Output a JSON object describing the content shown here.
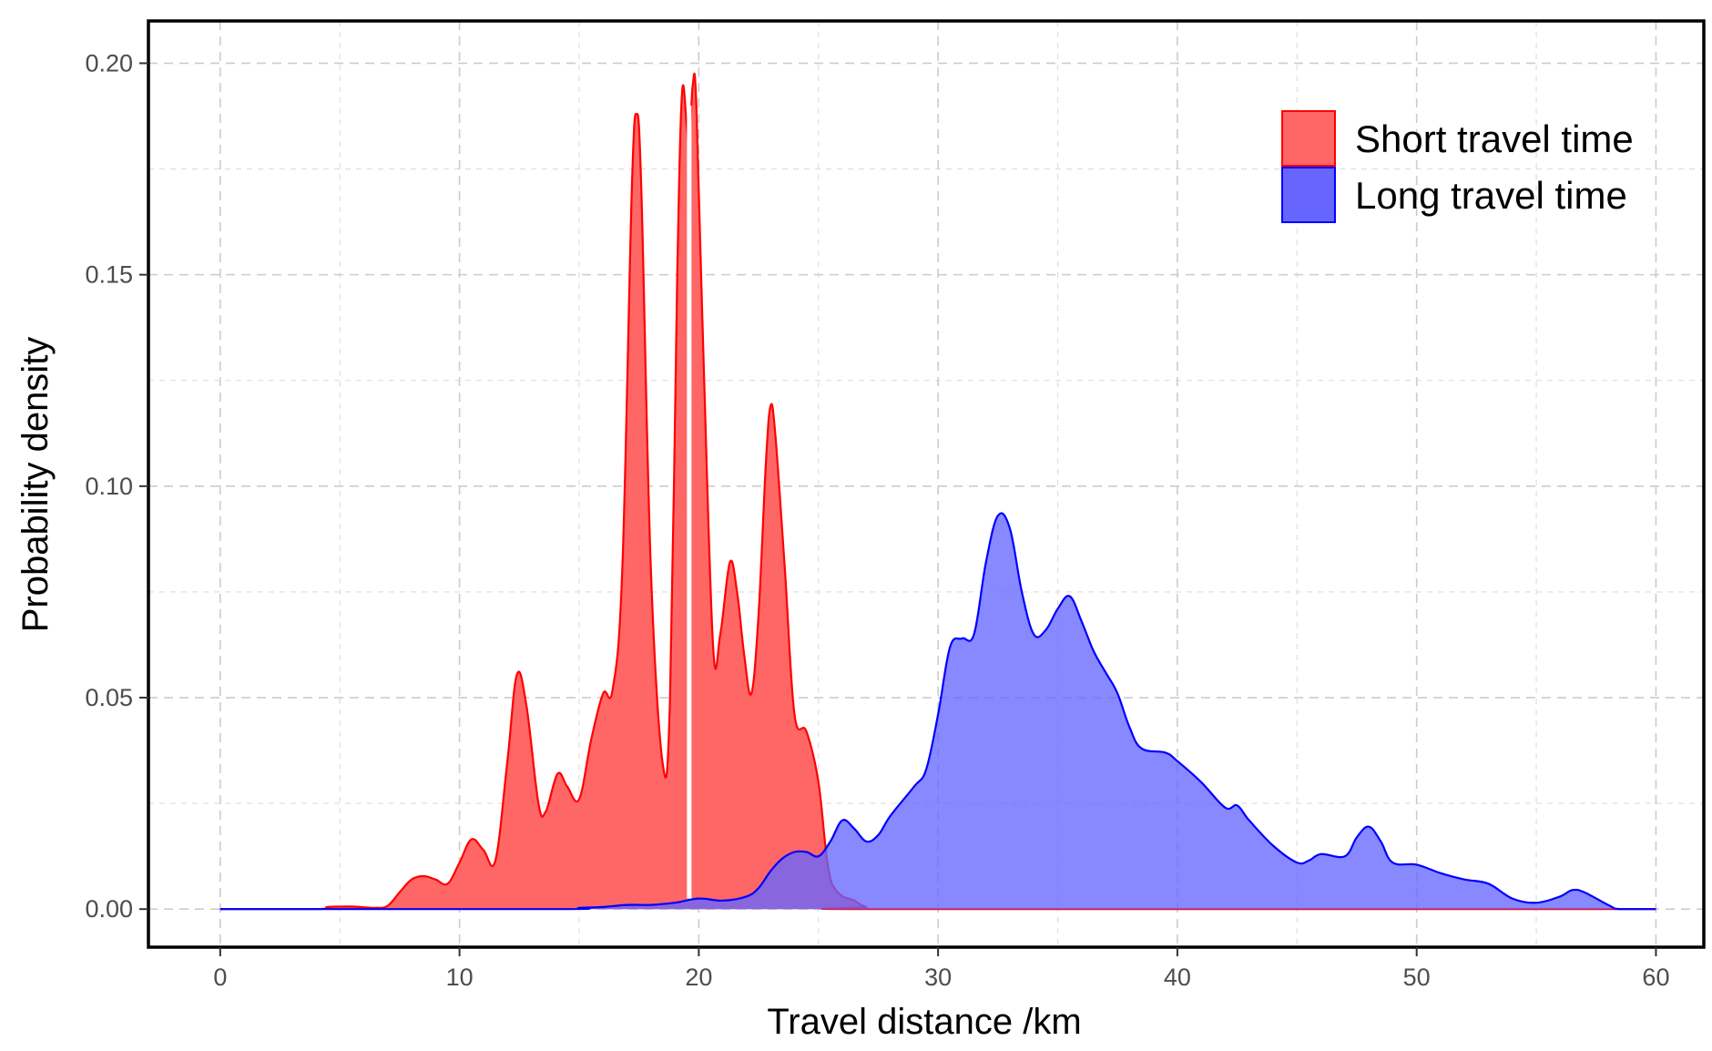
{
  "chart_data": {
    "type": "area",
    "title": "",
    "xlabel": "Travel distance /km",
    "ylabel": "Probability density",
    "xlim": [
      -3,
      62
    ],
    "ylim": [
      -0.009,
      0.21
    ],
    "x_ticks": [
      0,
      10,
      20,
      30,
      40,
      50,
      60
    ],
    "x_tick_labels": [
      "0",
      "10",
      "20",
      "30",
      "40",
      "50",
      "60"
    ],
    "y_ticks": [
      0.0,
      0.05,
      0.1,
      0.15,
      0.2
    ],
    "y_tick_labels": [
      "0.00",
      "0.05",
      "0.10",
      "0.15",
      "0.20"
    ],
    "grid": true,
    "legend_position": "top-right",
    "series": [
      {
        "name": "Short travel time",
        "fill": "#ff6666",
        "stroke": "#ff0000",
        "points": [
          [
            0,
            0
          ],
          [
            4,
            0
          ],
          [
            4.5,
            0.0005
          ],
          [
            5.5,
            0.0006
          ],
          [
            6.5,
            0.0003
          ],
          [
            7,
            0.0008
          ],
          [
            7.5,
            0.004
          ],
          [
            8,
            0.007
          ],
          [
            8.5,
            0.0078
          ],
          [
            9,
            0.007
          ],
          [
            9.5,
            0.006
          ],
          [
            10,
            0.011
          ],
          [
            10.5,
            0.0165
          ],
          [
            11,
            0.014
          ],
          [
            11.5,
            0.0115
          ],
          [
            12,
            0.035
          ],
          [
            12.4,
            0.0555
          ],
          [
            12.8,
            0.048
          ],
          [
            13.3,
            0.025
          ],
          [
            13.6,
            0.023
          ],
          [
            14.1,
            0.032
          ],
          [
            14.5,
            0.029
          ],
          [
            15,
            0.026
          ],
          [
            15.5,
            0.04
          ],
          [
            16,
            0.051
          ],
          [
            16.4,
            0.052
          ],
          [
            16.8,
            0.08
          ],
          [
            17.2,
            0.17
          ],
          [
            17.4,
            0.188
          ],
          [
            17.6,
            0.17
          ],
          [
            18,
            0.08
          ],
          [
            18.5,
            0.034
          ],
          [
            18.8,
            0.05
          ],
          [
            19.1,
            0.15
          ],
          [
            19.3,
            0.193
          ],
          [
            19.5,
            0.185
          ],
          [
            19.6,
            0.18
          ],
          [
            19.75,
            0.195
          ],
          [
            19.9,
            0.19
          ],
          [
            20.2,
            0.13
          ],
          [
            20.6,
            0.062
          ],
          [
            20.9,
            0.065
          ],
          [
            21.3,
            0.082
          ],
          [
            21.6,
            0.075
          ],
          [
            21.9,
            0.06
          ],
          [
            22.2,
            0.051
          ],
          [
            22.5,
            0.07
          ],
          [
            22.8,
            0.105
          ],
          [
            23,
            0.119
          ],
          [
            23.2,
            0.112
          ],
          [
            23.6,
            0.08
          ],
          [
            24,
            0.046
          ],
          [
            24.5,
            0.042
          ],
          [
            25,
            0.03
          ],
          [
            25.4,
            0.01
          ],
          [
            25.8,
            0.004
          ],
          [
            26.5,
            0.002
          ],
          [
            27,
            0.0005
          ],
          [
            28,
            0
          ],
          [
            60,
            0
          ]
        ]
      },
      {
        "name": "Long travel time",
        "fill": "#6666ff",
        "stroke": "#0000ff",
        "points": [
          [
            0,
            0
          ],
          [
            14,
            0
          ],
          [
            15,
            0.0003
          ],
          [
            16,
            0.0005
          ],
          [
            17,
            0.001
          ],
          [
            18,
            0.001
          ],
          [
            19,
            0.0015
          ],
          [
            20,
            0.0025
          ],
          [
            21,
            0.002
          ],
          [
            22,
            0.003
          ],
          [
            22.5,
            0.005
          ],
          [
            23,
            0.009
          ],
          [
            23.5,
            0.012
          ],
          [
            24,
            0.0135
          ],
          [
            24.5,
            0.0135
          ],
          [
            25,
            0.0125
          ],
          [
            25.5,
            0.016
          ],
          [
            26,
            0.021
          ],
          [
            26.5,
            0.019
          ],
          [
            27,
            0.016
          ],
          [
            27.5,
            0.0175
          ],
          [
            28,
            0.022
          ],
          [
            29,
            0.029
          ],
          [
            29.5,
            0.033
          ],
          [
            30,
            0.046
          ],
          [
            30.5,
            0.062
          ],
          [
            31,
            0.064
          ],
          [
            31.5,
            0.065
          ],
          [
            32,
            0.082
          ],
          [
            32.5,
            0.093
          ],
          [
            33,
            0.09
          ],
          [
            33.5,
            0.075
          ],
          [
            34,
            0.065
          ],
          [
            34.5,
            0.066
          ],
          [
            35,
            0.071
          ],
          [
            35.5,
            0.074
          ],
          [
            36,
            0.068
          ],
          [
            36.5,
            0.061
          ],
          [
            37,
            0.056
          ],
          [
            37.5,
            0.051
          ],
          [
            38,
            0.043
          ],
          [
            38.5,
            0.038
          ],
          [
            39.5,
            0.037
          ],
          [
            40,
            0.035
          ],
          [
            41,
            0.03
          ],
          [
            42,
            0.024
          ],
          [
            42.5,
            0.0245
          ],
          [
            43,
            0.021
          ],
          [
            44,
            0.015
          ],
          [
            45,
            0.011
          ],
          [
            45.5,
            0.0115
          ],
          [
            46,
            0.013
          ],
          [
            47,
            0.0125
          ],
          [
            47.5,
            0.017
          ],
          [
            48,
            0.0195
          ],
          [
            48.5,
            0.016
          ],
          [
            49,
            0.011
          ],
          [
            50,
            0.0105
          ],
          [
            51,
            0.0085
          ],
          [
            52,
            0.007
          ],
          [
            53,
            0.006
          ],
          [
            54,
            0.0025
          ],
          [
            55,
            0.0015
          ],
          [
            56,
            0.003
          ],
          [
            56.5,
            0.0045
          ],
          [
            57,
            0.004
          ],
          [
            58,
            0.001
          ],
          [
            58.5,
            0
          ],
          [
            60,
            0
          ]
        ]
      }
    ],
    "annotations": [
      {
        "type": "vline",
        "x": 19.6,
        "y_from": 0.0025,
        "y_to": 0.19,
        "color": "#ffffff"
      }
    ]
  }
}
